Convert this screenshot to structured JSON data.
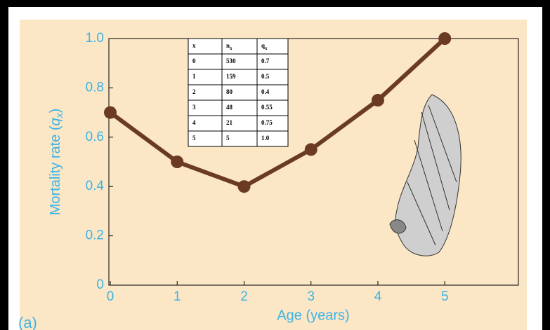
{
  "chart_data": {
    "type": "line",
    "x_label": "Age (years)",
    "y_label": {
      "text": "Mortality rate (",
      "var": "q",
      "sub": "x",
      "close": ")"
    },
    "panel_label": "(a)",
    "x": [
      0,
      1,
      2,
      3,
      4,
      5
    ],
    "series": [
      {
        "color": "#6b3a22",
        "values": [
          0.7,
          0.5,
          0.4,
          0.55,
          0.75,
          1.0
        ]
      }
    ],
    "xlim": [
      0,
      6.1
    ],
    "xticks": [
      0,
      1,
      2,
      3,
      4,
      5
    ],
    "ylim": [
      0,
      1
    ],
    "yticks": [
      0,
      {
        "value": 0.2,
        "label": "0.2"
      },
      {
        "value": 0.4,
        "label": "0.4"
      },
      {
        "value": 0.6,
        "label": "0.6"
      },
      {
        "value": 0.8,
        "label": "0.8"
      },
      {
        "value": 1,
        "label": "1.0"
      }
    ],
    "tick_color": "#3ab4e6"
  },
  "table": {
    "header": [
      "x",
      {
        "main": "n",
        "sub": "x"
      },
      {
        "main": "q",
        "sub": "x"
      }
    ],
    "rows": [
      [
        "0",
        "530",
        "0.7"
      ],
      [
        "1",
        "159",
        "0.5"
      ],
      [
        "2",
        "80",
        "0.4"
      ],
      [
        "3",
        "48",
        "0.55"
      ],
      [
        "4",
        "21",
        "0.75"
      ],
      [
        "5",
        "5",
        "1.0"
      ]
    ]
  }
}
